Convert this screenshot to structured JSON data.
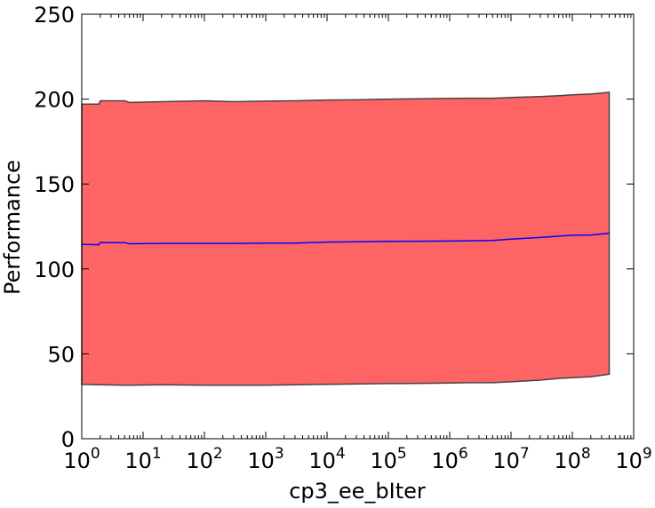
{
  "chart_data": {
    "type": "area",
    "title": "",
    "xlabel": "cp3_ee_bIter",
    "ylabel": "Performance",
    "xscale": "log",
    "xlim": [
      1,
      1000000000
    ],
    "ylim": [
      0,
      250
    ],
    "grid": false,
    "x_ticks": [
      {
        "base": "10",
        "exp": "0"
      },
      {
        "base": "10",
        "exp": "1"
      },
      {
        "base": "10",
        "exp": "2"
      },
      {
        "base": "10",
        "exp": "3"
      },
      {
        "base": "10",
        "exp": "4"
      },
      {
        "base": "10",
        "exp": "5"
      },
      {
        "base": "10",
        "exp": "6"
      },
      {
        "base": "10",
        "exp": "7"
      },
      {
        "base": "10",
        "exp": "8"
      },
      {
        "base": "10",
        "exp": "9"
      }
    ],
    "y_ticks": [
      "0",
      "50",
      "100",
      "150",
      "200",
      "250"
    ],
    "x": [
      1,
      1.9,
      2,
      5,
      6,
      20,
      100,
      300,
      1000,
      3000,
      10000,
      30000,
      100000,
      300000,
      1000000,
      2000000,
      5000000,
      10000000,
      30000000,
      60000000,
      100000000,
      200000000,
      400000000
    ],
    "mean": [
      114.5,
      114.2,
      115.5,
      115.5,
      114.8,
      115.0,
      115.0,
      115.0,
      115.2,
      115.2,
      115.8,
      116.0,
      116.2,
      116.3,
      116.4,
      116.6,
      116.8,
      117.5,
      118.5,
      119.3,
      119.8,
      120.0,
      121.0
    ],
    "upper": [
      197.0,
      197.0,
      199.0,
      199.0,
      198.0,
      198.5,
      199.0,
      198.5,
      198.8,
      199.0,
      199.5,
      199.6,
      200.0,
      200.2,
      200.4,
      200.5,
      200.5,
      201.0,
      201.5,
      202.0,
      202.5,
      203.0,
      204.0
    ],
    "lower": [
      32.0,
      31.8,
      31.8,
      31.5,
      31.5,
      31.8,
      31.5,
      31.5,
      31.5,
      31.8,
      32.0,
      32.2,
      32.5,
      32.6,
      32.8,
      33.0,
      33.0,
      33.5,
      34.5,
      35.5,
      36.0,
      36.5,
      38.0
    ],
    "colors": {
      "band_fill": "#ff6464",
      "band_edge": "#444444",
      "mean_line": "#0000ff"
    }
  }
}
